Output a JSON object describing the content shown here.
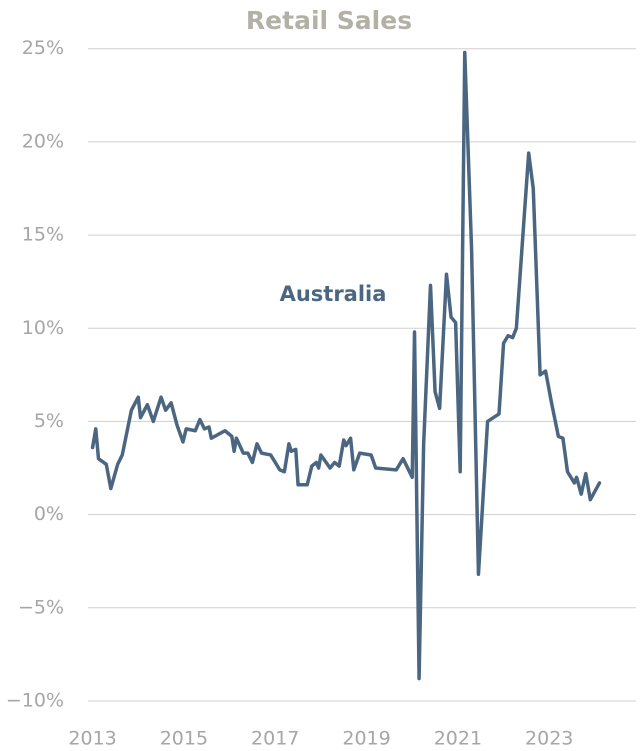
{
  "chart_data": {
    "type": "line",
    "title": "Retail Sales",
    "x": [
      2013.0,
      2013.07,
      2013.13,
      2013.3,
      2013.4,
      2013.55,
      2013.65,
      2013.85,
      2014.0,
      2014.05,
      2014.2,
      2014.33,
      2014.5,
      2014.6,
      2014.72,
      2014.85,
      2014.98,
      2015.05,
      2015.25,
      2015.35,
      2015.45,
      2015.55,
      2015.6,
      2015.9,
      2016.05,
      2016.1,
      2016.15,
      2016.3,
      2016.4,
      2016.5,
      2016.6,
      2016.7,
      2016.9,
      2017.1,
      2017.2,
      2017.3,
      2017.35,
      2017.45,
      2017.5,
      2017.7,
      2017.8,
      2017.9,
      2017.95,
      2018.0,
      2018.2,
      2018.3,
      2018.4,
      2018.5,
      2018.55,
      2018.65,
      2018.72,
      2018.85,
      2019.1,
      2019.2,
      2019.65,
      2019.8,
      2020.0,
      2020.05,
      2020.15,
      2020.25,
      2020.4,
      2020.5,
      2020.6,
      2020.75,
      2020.85,
      2020.95,
      2021.05,
      2021.15,
      2021.3,
      2021.45,
      2021.65,
      2021.9,
      2022.0,
      2022.1,
      2022.2,
      2022.28,
      2022.55,
      2022.65,
      2022.8,
      2022.92,
      2023.05,
      2023.2,
      2023.3,
      2023.4,
      2023.55,
      2023.6,
      2023.7,
      2023.8,
      2023.9,
      2024.1
    ],
    "series": [
      {
        "name": "Australia",
        "color": "#4b6681",
        "values": [
          3.6,
          4.6,
          3.0,
          2.7,
          1.4,
          2.7,
          3.2,
          5.6,
          6.3,
          5.2,
          5.9,
          5.0,
          6.3,
          5.6,
          6.0,
          4.8,
          3.9,
          4.6,
          4.5,
          5.1,
          4.6,
          4.7,
          4.1,
          4.5,
          4.2,
          3.4,
          4.1,
          3.3,
          3.3,
          2.8,
          3.8,
          3.3,
          3.2,
          2.4,
          2.3,
          3.8,
          3.4,
          3.5,
          1.6,
          1.6,
          2.6,
          2.8,
          2.5,
          3.2,
          2.5,
          2.8,
          2.6,
          4.0,
          3.7,
          4.1,
          2.4,
          3.3,
          3.2,
          2.5,
          2.4,
          3.0,
          2.0,
          9.8,
          -8.8,
          3.8,
          12.3,
          6.6,
          5.7,
          12.9,
          10.6,
          10.3,
          2.3,
          24.8,
          14.2,
          -3.2,
          5.0,
          5.4,
          9.2,
          9.6,
          9.5,
          10.0,
          19.4,
          17.5,
          7.5,
          7.7,
          6.0,
          4.2,
          4.1,
          2.3,
          1.7,
          2.0,
          1.1,
          2.2,
          0.8,
          1.7
        ]
      }
    ],
    "xlim": [
      2012.9,
      2024.9
    ],
    "xticks": [
      2013,
      2015,
      2017,
      2019,
      2021,
      2023
    ],
    "ylim": [
      -10.7,
      25.2
    ],
    "yticks": [
      {
        "value": -10,
        "label": "−10%"
      },
      {
        "value": -5,
        "label": "−5%"
      },
      {
        "value": 0,
        "label": "0%"
      },
      {
        "value": 5,
        "label": "5%"
      },
      {
        "value": 10,
        "label": "10%"
      },
      {
        "value": 15,
        "label": "15%"
      },
      {
        "value": 20,
        "label": "20%"
      },
      {
        "value": 25,
        "label": "25%"
      }
    ],
    "grid": true
  }
}
